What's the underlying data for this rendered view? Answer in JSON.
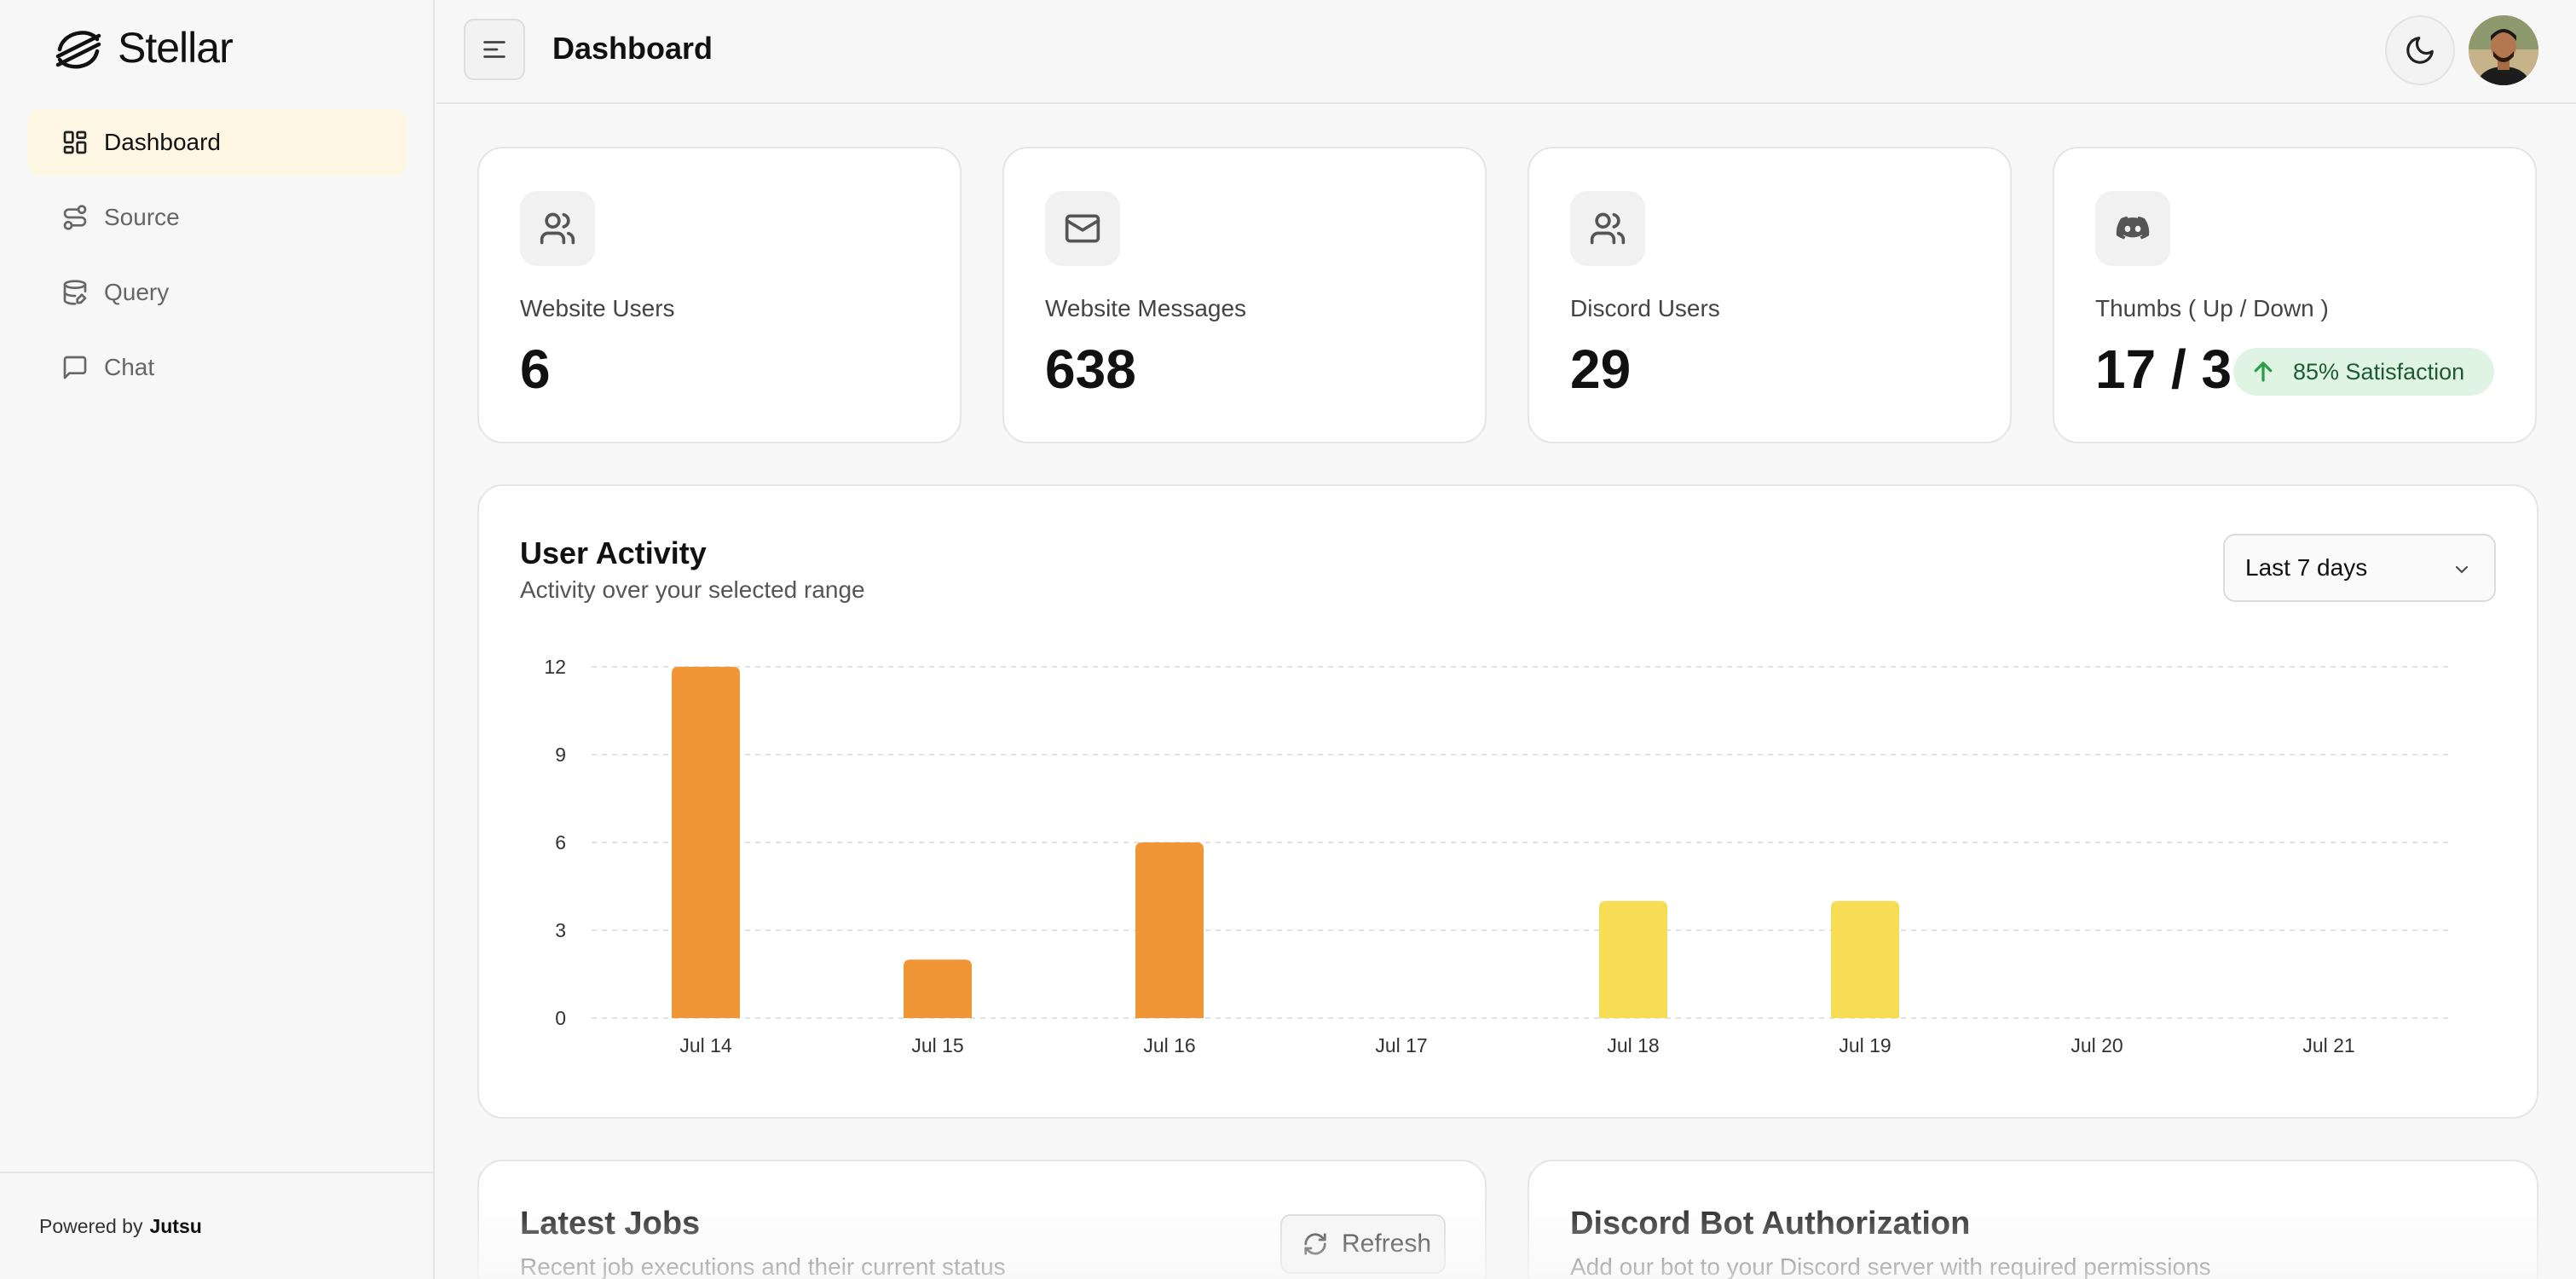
{
  "sidebar": {
    "brand": "Stellar",
    "items": [
      {
        "label": "Dashboard",
        "active": true
      },
      {
        "label": "Source",
        "active": false
      },
      {
        "label": "Query",
        "active": false
      },
      {
        "label": "Chat",
        "active": false
      }
    ],
    "footer": {
      "prefix": "Powered by",
      "name": "Jutsu"
    }
  },
  "header": {
    "title": "Dashboard"
  },
  "stats": [
    {
      "label": "Website Users",
      "value": "6",
      "icon": "users-icon"
    },
    {
      "label": "Website Messages",
      "value": "638",
      "icon": "mail-icon"
    },
    {
      "label": "Discord Users",
      "value": "29",
      "icon": "users-icon"
    },
    {
      "label": "Thumbs ( Up / Down )",
      "value": "17 / 3",
      "icon": "discord-icon",
      "badge": "85% Satisfaction"
    }
  ],
  "activity": {
    "title": "User Activity",
    "subtitle": "Activity over your selected range",
    "range": "Last 7 days"
  },
  "chart_data": {
    "type": "bar",
    "title": "",
    "xlabel": "",
    "ylabel": "",
    "categories": [
      "Jul 14",
      "Jul 15",
      "Jul 16",
      "Jul 17",
      "Jul 18",
      "Jul 19",
      "Jul 20",
      "Jul 21"
    ],
    "values": [
      12,
      2,
      6,
      0,
      4,
      4,
      0,
      0
    ],
    "bar_colors": [
      "#f09637",
      "#f09637",
      "#f09637",
      "#f09637",
      "#f7dc55",
      "#f7dc55",
      "#f7dc55",
      "#f7dc55"
    ],
    "yticks": [
      0,
      3,
      6,
      9,
      12
    ],
    "ylim": [
      0,
      12
    ],
    "grid": true,
    "legend": "none"
  },
  "jobs": {
    "title": "Latest Jobs",
    "subtitle": "Recent job executions and their current status",
    "refresh_label": "Refresh"
  },
  "discord_auth": {
    "title": "Discord Bot Authorization",
    "subtitle": "Add our bot to your Discord server with required permissions"
  },
  "colors": {
    "accent_active": "#fdf6e3",
    "bar_primary": "#f09637",
    "bar_secondary": "#f7dc55",
    "success_bg": "#e0f4e4"
  }
}
